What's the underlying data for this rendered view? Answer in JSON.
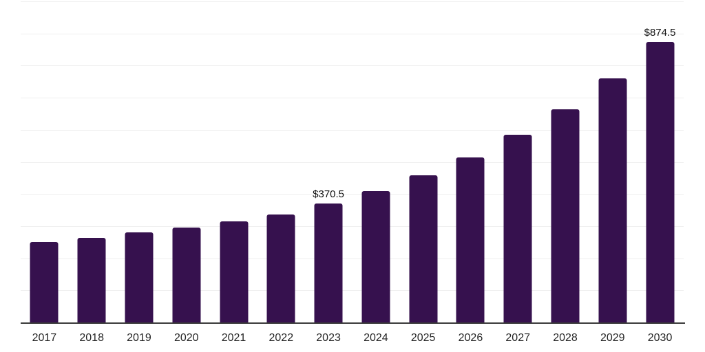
{
  "chart_data": {
    "type": "bar",
    "title": "",
    "xlabel": "",
    "ylabel": "",
    "categories": [
      "2017",
      "2018",
      "2019",
      "2020",
      "2021",
      "2022",
      "2023",
      "2024",
      "2025",
      "2026",
      "2027",
      "2028",
      "2029",
      "2030"
    ],
    "values": [
      251,
      264,
      280,
      295,
      315,
      336,
      370.5,
      408,
      458,
      515,
      585,
      663,
      760,
      874.5
    ],
    "data_labels": {
      "2023": "$370.5",
      "2030": "$874.5"
    },
    "ylim": [
      0,
      1000
    ],
    "gridline_step": 100,
    "y_axis_labels_visible": false,
    "legend": "none",
    "grid": "horizontal",
    "colors": {
      "bar": "#36114E",
      "gridline": "#EFEFEF",
      "axis_line": "#3A3A3A",
      "tick_label": "#262626",
      "data_label": "#111111",
      "background": "#FFFFFF"
    }
  }
}
